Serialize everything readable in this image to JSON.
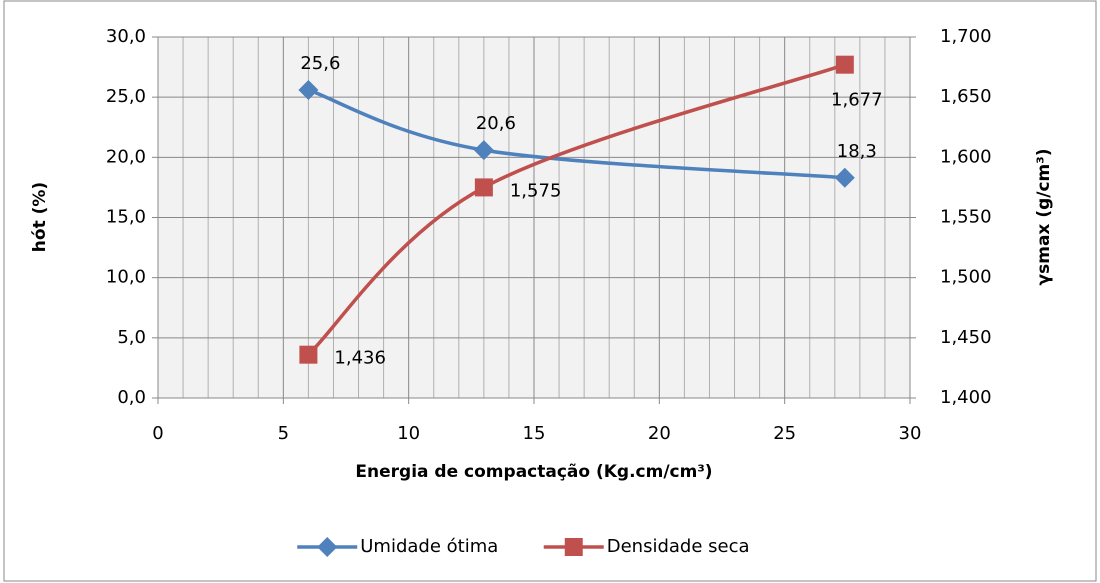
{
  "chart_data": {
    "type": "line",
    "x_label": "Energia de compactação (Kg.cm/cm³)",
    "y_label": "hót (%)",
    "y2_label": "γsmax (g/cm³)",
    "x": [
      6,
      13,
      27.4
    ],
    "series": [
      {
        "name": "Umidade ótima",
        "color": "#4f81bd",
        "marker": "diamond",
        "values": [
          25.6,
          20.6,
          18.3
        ],
        "value_labels": [
          "25,6",
          "20,6",
          "18,3"
        ]
      },
      {
        "name": "Densidade seca",
        "color": "#c0504d",
        "marker": "square",
        "axis": "y2",
        "values": [
          1.436,
          1.575,
          1.677
        ],
        "value_labels": [
          "1,436",
          "1,575",
          "1,677"
        ]
      }
    ],
    "xlim": [
      0,
      30
    ],
    "xticks": [
      0,
      5,
      10,
      15,
      20,
      25,
      30
    ],
    "ylim": [
      0,
      30
    ],
    "yticks": [
      {
        "value": 0,
        "label": "0,0"
      },
      {
        "value": 5,
        "label": "5,0"
      },
      {
        "value": 10,
        "label": "10,0"
      },
      {
        "value": 15,
        "label": "15,0"
      },
      {
        "value": 20,
        "label": "20,0"
      },
      {
        "value": 25,
        "label": "25,0"
      },
      {
        "value": 30,
        "label": "30,0"
      }
    ],
    "y2lim": [
      1.4,
      1.7
    ],
    "y2ticks": [
      {
        "value": 1.4,
        "label": "1,400"
      },
      {
        "value": 1.45,
        "label": "1,450"
      },
      {
        "value": 1.5,
        "label": "1,500"
      },
      {
        "value": 1.55,
        "label": "1,550"
      },
      {
        "value": 1.6,
        "label": "1,600"
      },
      {
        "value": 1.65,
        "label": "1,650"
      },
      {
        "value": 1.7,
        "label": "1,700"
      }
    ],
    "grid": true,
    "smooth": true,
    "legend": "bottom"
  }
}
